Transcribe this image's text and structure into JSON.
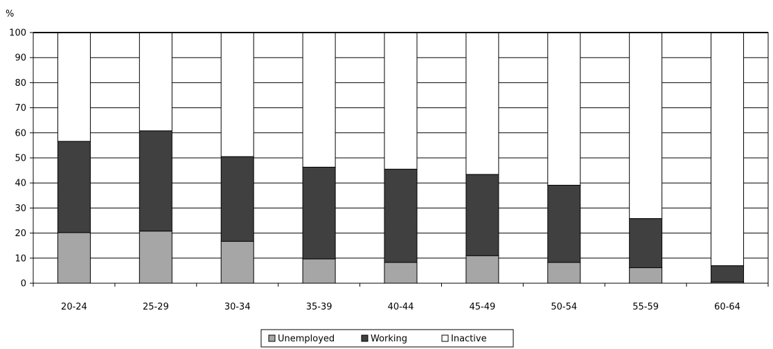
{
  "chart_data": {
    "type": "bar",
    "stacked": true,
    "ylabel": "%",
    "ylim": [
      0,
      100
    ],
    "yticks": [
      0,
      10,
      20,
      30,
      40,
      50,
      60,
      70,
      80,
      90,
      100
    ],
    "grid": true,
    "legend_position": "bottom",
    "categories": [
      "20-24",
      "25-29",
      "30-34",
      "35-39",
      "40-44",
      "45-49",
      "50-54",
      "55-59",
      "60-64"
    ],
    "series": [
      {
        "name": "Unemployed",
        "color": "#a6a6a6",
        "values": [
          20.2,
          20.8,
          16.7,
          9.7,
          8.3,
          11.0,
          8.3,
          6.2,
          0.5
        ]
      },
      {
        "name": "Working",
        "color": "#404040",
        "values": [
          36.4,
          40.0,
          33.8,
          36.6,
          37.2,
          32.4,
          30.8,
          19.6,
          6.5
        ]
      },
      {
        "name": "Inactive",
        "color": "#ffffff",
        "values": [
          43.4,
          39.2,
          49.5,
          53.7,
          54.5,
          56.6,
          60.9,
          74.2,
          93.0
        ]
      }
    ]
  }
}
